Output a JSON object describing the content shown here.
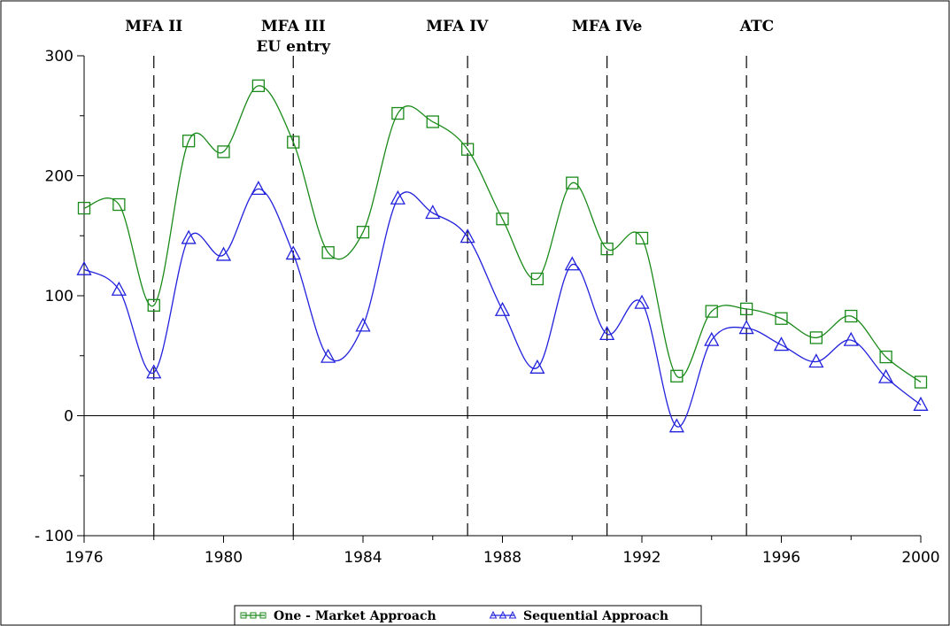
{
  "chart_data": {
    "type": "line",
    "x": [
      1976,
      1977,
      1978,
      1979,
      1980,
      1981,
      1982,
      1983,
      1984,
      1985,
      1986,
      1987,
      1988,
      1989,
      1990,
      1991,
      1992,
      1993,
      1994,
      1995,
      1996,
      1997,
      1998,
      1999,
      2000
    ],
    "series": [
      {
        "name": "One - Market Approach",
        "marker": "square",
        "color": "#1a8a1a",
        "values": [
          173,
          176,
          92,
          229,
          220,
          275,
          228,
          136,
          153,
          252,
          245,
          222,
          164,
          114,
          194,
          139,
          148,
          33,
          87,
          89,
          81,
          65,
          83,
          49,
          28
        ]
      },
      {
        "name": "Sequential Approach",
        "marker": "triangle",
        "color": "#2222dd",
        "values": [
          122,
          105,
          36,
          148,
          134,
          189,
          135,
          49,
          75,
          181,
          169,
          149,
          88,
          40,
          126,
          68,
          94,
          -9,
          63,
          73,
          59,
          45,
          63,
          32,
          9
        ]
      }
    ],
    "xlim": [
      1976,
      2000
    ],
    "ylim": [
      -100,
      300
    ],
    "xticks": [
      1976,
      1980,
      1984,
      1988,
      1992,
      1996,
      2000
    ],
    "yticks": [
      -100,
      0,
      100,
      200,
      300
    ],
    "ytick_labels": [
      "- 100",
      "0",
      "100",
      "200",
      "300"
    ],
    "phases": [
      {
        "year": 1978,
        "label": "MFA II"
      },
      {
        "year": 1982,
        "label": "MFA III",
        "label2": "EU entry"
      },
      {
        "year": 1987,
        "label": "MFA IV"
      },
      {
        "year": 1991,
        "label": "MFA IVe"
      },
      {
        "year": 1995,
        "label": "ATC"
      }
    ],
    "phase_label_year_offsets": [
      0,
      0,
      -0.3,
      0,
      0.3
    ],
    "legend_position": "bottom-center",
    "grid": false
  }
}
